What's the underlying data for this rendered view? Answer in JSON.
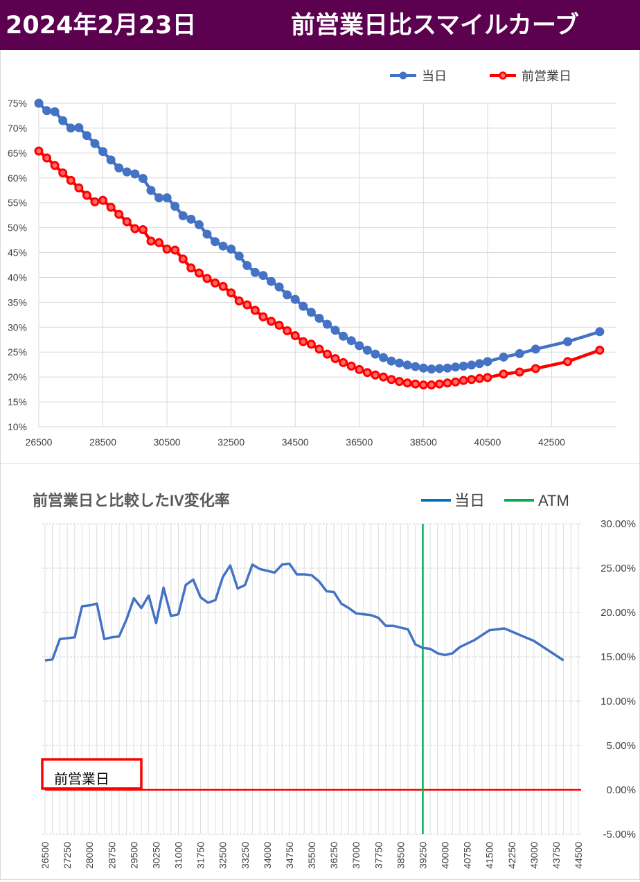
{
  "header": {
    "date": "2024年2月23日",
    "title": "前営業日比スマイルカーブ"
  },
  "colors": {
    "header_bg": "#5c0050",
    "today": "#4472c4",
    "prev": "#ff0000",
    "atm": "#00b050"
  },
  "chart_data": [
    {
      "type": "line",
      "title": "",
      "legend": [
        "当日",
        "前営業日"
      ],
      "legend_position": "top-right",
      "grid": true,
      "xlim": [
        26500,
        44500
      ],
      "ylim": [
        0.1,
        0.75
      ],
      "x_ticks": [
        "26500",
        "28500",
        "30500",
        "32500",
        "34500",
        "36500",
        "38500",
        "40500",
        "42500"
      ],
      "y_ticks": [
        "10%",
        "15%",
        "20%",
        "25%",
        "30%",
        "35%",
        "40%",
        "45%",
        "50%",
        "55%",
        "60%",
        "65%",
        "70%",
        "75%"
      ],
      "x": [
        26500,
        26750,
        27000,
        27250,
        27500,
        27750,
        28000,
        28250,
        28500,
        28750,
        29000,
        29250,
        29500,
        29750,
        30000,
        30250,
        30500,
        30750,
        31000,
        31250,
        31500,
        31750,
        32000,
        32250,
        32500,
        32750,
        33000,
        33250,
        33500,
        33750,
        34000,
        34250,
        34500,
        34750,
        35000,
        35250,
        35500,
        35750,
        36000,
        36250,
        36500,
        36750,
        37000,
        37250,
        37500,
        37750,
        38000,
        38250,
        38500,
        38750,
        39000,
        39250,
        39500,
        39750,
        40000,
        40250,
        40500,
        41000,
        41500,
        42000,
        43000,
        44000
      ],
      "series": [
        {
          "name": "当日",
          "color": "#4472c4",
          "values": [
            0.75,
            0.735,
            0.733,
            0.715,
            0.7,
            0.701,
            0.685,
            0.669,
            0.653,
            0.636,
            0.62,
            0.612,
            0.608,
            0.599,
            0.575,
            0.56,
            0.56,
            0.543,
            0.524,
            0.517,
            0.506,
            0.487,
            0.472,
            0.463,
            0.457,
            0.443,
            0.424,
            0.41,
            0.404,
            0.392,
            0.381,
            0.365,
            0.356,
            0.342,
            0.33,
            0.318,
            0.306,
            0.294,
            0.282,
            0.273,
            0.263,
            0.254,
            0.246,
            0.239,
            0.232,
            0.228,
            0.224,
            0.221,
            0.218,
            0.216,
            0.217,
            0.218,
            0.22,
            0.222,
            0.224,
            0.227,
            0.231,
            0.24,
            0.247,
            0.256,
            0.271,
            0.291
          ]
        },
        {
          "name": "前営業日",
          "color": "#ff0000",
          "values": [
            0.654,
            0.64,
            0.625,
            0.61,
            0.595,
            0.58,
            0.565,
            0.552,
            0.555,
            0.541,
            0.527,
            0.512,
            0.498,
            0.496,
            0.473,
            0.47,
            0.457,
            0.455,
            0.437,
            0.419,
            0.409,
            0.398,
            0.389,
            0.382,
            0.369,
            0.353,
            0.345,
            0.334,
            0.321,
            0.312,
            0.304,
            0.293,
            0.283,
            0.271,
            0.266,
            0.256,
            0.246,
            0.237,
            0.229,
            0.222,
            0.215,
            0.209,
            0.204,
            0.2,
            0.195,
            0.191,
            0.188,
            0.186,
            0.184,
            0.184,
            0.186,
            0.188,
            0.19,
            0.193,
            0.195,
            0.197,
            0.199,
            0.206,
            0.21,
            0.217,
            0.231,
            0.254
          ]
        }
      ]
    },
    {
      "type": "line",
      "title": "前営業日と比較したIV変化率",
      "legend": [
        "当日",
        "ATM"
      ],
      "legend_position": "top-right",
      "grid": true,
      "ylim": [
        -0.05,
        0.3
      ],
      "y_ticks": [
        "30.00%",
        "25.00%",
        "20.00%",
        "15.00%",
        "10.00%",
        "5.00%",
        "0.00%",
        "-5.00%"
      ],
      "x_ticks": [
        "26500",
        "27250",
        "28000",
        "28750",
        "29500",
        "30250",
        "31000",
        "31750",
        "32500",
        "33250",
        "34000",
        "34750",
        "35500",
        "36250",
        "37000",
        "37750",
        "38500",
        "39250",
        "40000",
        "40750",
        "41500",
        "42250",
        "43000",
        "43750",
        "44500"
      ],
      "x": [
        26500,
        26750,
        27000,
        27250,
        27500,
        27750,
        28000,
        28250,
        28500,
        28750,
        29000,
        29250,
        29500,
        29750,
        30000,
        30250,
        30500,
        30750,
        31000,
        31250,
        31500,
        31750,
        32000,
        32250,
        32500,
        32750,
        33000,
        33250,
        33500,
        33750,
        34000,
        34250,
        34500,
        34750,
        35000,
        35250,
        35500,
        35750,
        36000,
        36250,
        36500,
        36750,
        37000,
        37250,
        37500,
        37750,
        38000,
        38250,
        38500,
        38750,
        39000,
        39250,
        39500,
        39750,
        40000,
        40250,
        40500,
        41000,
        41500,
        42000,
        43000,
        44000
      ],
      "atm": 39250,
      "prev_label": "前営業日",
      "series": [
        {
          "name": "当日",
          "color": "#4472c4",
          "values": [
            0.146,
            0.147,
            0.17,
            0.171,
            0.172,
            0.207,
            0.208,
            0.21,
            0.17,
            0.172,
            0.173,
            0.192,
            0.216,
            0.205,
            0.219,
            0.188,
            0.228,
            0.196,
            0.198,
            0.231,
            0.237,
            0.217,
            0.211,
            0.214,
            0.24,
            0.253,
            0.227,
            0.231,
            0.254,
            0.249,
            0.247,
            0.245,
            0.254,
            0.255,
            0.243,
            0.243,
            0.242,
            0.235,
            0.224,
            0.223,
            0.21,
            0.205,
            0.199,
            0.198,
            0.197,
            0.194,
            0.185,
            0.185,
            0.183,
            0.181,
            0.164,
            0.16,
            0.159,
            0.154,
            0.152,
            0.154,
            0.161,
            0.169,
            0.18,
            0.182,
            0.168,
            0.146
          ]
        },
        {
          "name": "前営業日",
          "color": "#ff0000",
          "values": [
            0.0,
            0.0,
            0.0,
            0.0,
            0.0,
            0.0,
            0.0,
            0.0,
            0.0,
            0.0,
            0.0,
            0.0,
            0.0,
            0.0,
            0.0,
            0.0,
            0.0,
            0.0,
            0.0,
            0.0,
            0.0,
            0.0,
            0.0,
            0.0,
            0.0,
            0.0,
            0.0,
            0.0,
            0.0,
            0.0,
            0.0,
            0.0,
            0.0,
            0.0,
            0.0,
            0.0,
            0.0,
            0.0,
            0.0,
            0.0,
            0.0,
            0.0,
            0.0,
            0.0,
            0.0,
            0.0,
            0.0,
            0.0,
            0.0,
            0.0,
            0.0,
            0.0,
            0.0,
            0.0,
            0.0,
            0.0,
            0.0,
            0.0,
            0.0,
            0.0,
            0.0,
            0.0
          ]
        }
      ]
    }
  ]
}
